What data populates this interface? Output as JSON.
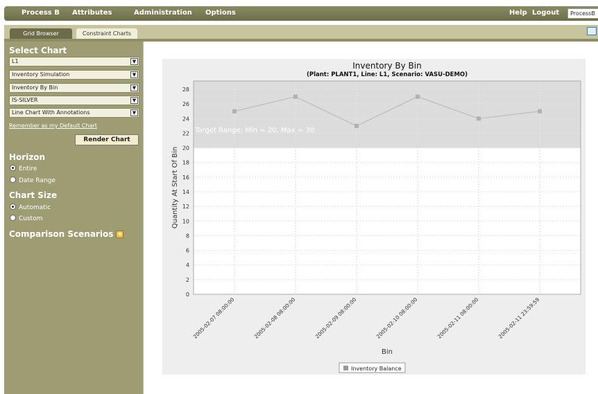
{
  "menu": {
    "items": [
      "Process B",
      "Attributes",
      "Administration",
      "Options"
    ],
    "help": "Help",
    "logout": "Logout",
    "scenario_value": "ProcessB"
  },
  "tabs": {
    "grid_browser": "Grid Browser",
    "constraint_charts": "Constraint Charts"
  },
  "sidebar": {
    "select_chart_heading": "Select Chart",
    "selects": [
      "L1",
      "Inventory Simulation",
      "Inventory By Bin",
      "IS-SILVER",
      "Line Chart With Annotations"
    ],
    "default_link": "Remember as my Default Chart",
    "render_button": "Render Chart",
    "horizon_heading": "Horizon",
    "horizon_options": [
      {
        "label": "Entire",
        "checked": true
      },
      {
        "label": "Date Range",
        "checked": false
      }
    ],
    "chart_size_heading": "Chart Size",
    "chart_size_options": [
      {
        "label": "Automatic",
        "checked": true
      },
      {
        "label": "Custom",
        "checked": false
      }
    ],
    "comparison_heading": "Comparison Scenarios"
  },
  "chart_data": {
    "type": "line",
    "title": "Inventory By Bin",
    "subtitle": "(Plant: PLANT1, Line: L1, Scenario: VASU-DEMO)",
    "xlabel": "Bin",
    "ylabel": "Quantity At Start Of Bin",
    "ylim": [
      0,
      28
    ],
    "yticks": [
      0,
      2,
      4,
      6,
      8,
      10,
      12,
      14,
      16,
      18,
      20,
      22,
      24,
      26,
      28
    ],
    "categories": [
      "2005-02-07 08:00:00",
      "2005-02-08 08:00:00",
      "2005-02-09 08:00:00",
      "2005-02-10 08:00:00",
      "2005-02-11 08:00:00",
      "2005-02-11 23:59:59"
    ],
    "series": [
      {
        "name": "Inventory Balance",
        "values": [
          25,
          27,
          23,
          27,
          24,
          25
        ],
        "color": "#bbbbbb"
      }
    ],
    "band": {
      "min": 20,
      "max": 30,
      "label": "Target Range: Min = 20, Max = 30",
      "color": "#dcdcdc"
    },
    "grid": true,
    "legend": "bottom-center"
  }
}
